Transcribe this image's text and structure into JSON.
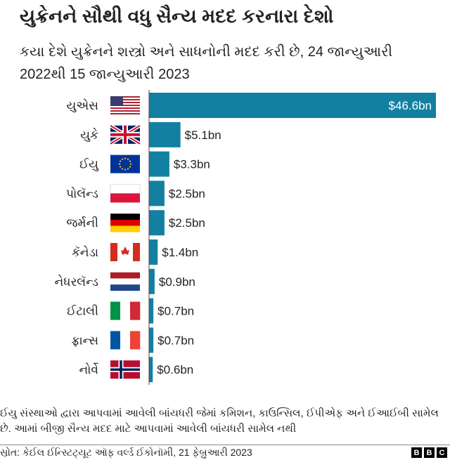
{
  "chart_data": {
    "type": "bar",
    "orientation": "horizontal",
    "title": "યુક્રેનને સૌથી વધુ સૈન્ય મદદ કરનારા દેશો",
    "subtitle": "કયા દેશે યુક્રેનને શસ્ત્રો અને સાધનોની મદદ કરી છે, 24 જાન્યુઆરી 2022થી 15 જાન્યુઆરી 2023",
    "categories": [
      "યુએસ",
      "યુકે",
      "ઈયુ",
      "પોલૅન્ડ",
      "જર્મની",
      "કૅનેડા",
      "નેધરલૅન્ડ",
      "ઈટાલી",
      "ફ્રાન્સ",
      "નોર્વે"
    ],
    "flags": [
      "us",
      "uk",
      "eu",
      "poland",
      "germany",
      "canada",
      "netherlands",
      "italy",
      "france",
      "norway"
    ],
    "values": [
      46.6,
      5.1,
      3.3,
      2.5,
      2.5,
      1.4,
      0.9,
      0.7,
      0.7,
      0.6
    ],
    "labels": [
      "$46.6bn",
      "$5.1bn",
      "$3.3bn",
      "$2.5bn",
      "$2.5bn",
      "$1.4bn",
      "$0.9bn",
      "$0.7bn",
      "$0.7bn",
      "$0.6bn"
    ],
    "unit": "$bn",
    "xlim": [
      0,
      46.6
    ],
    "bar_color": "#1380a1"
  },
  "note": "ઈયુ સંસ્થાઓ દ્વારા આપવામાં આવેલી બાંયધરી જેમાં કમિશન, કાઉન્સિલ, ઈપીએફ અને ઈઆઈબી સામેલ છે. આમાં બીજી સૈન્ય મદદ માટે આપવામાં આવેલી બાંયધરી સામેલ નથી",
  "source": "સ્રોત: કેઈલ ઈન્સ્ટિટ્યૂટ ઑફ વર્લ્ડ ઈકોનૉમી, 21 ફેબ્રુઆરી 2023",
  "logo": [
    "B",
    "B",
    "C"
  ]
}
